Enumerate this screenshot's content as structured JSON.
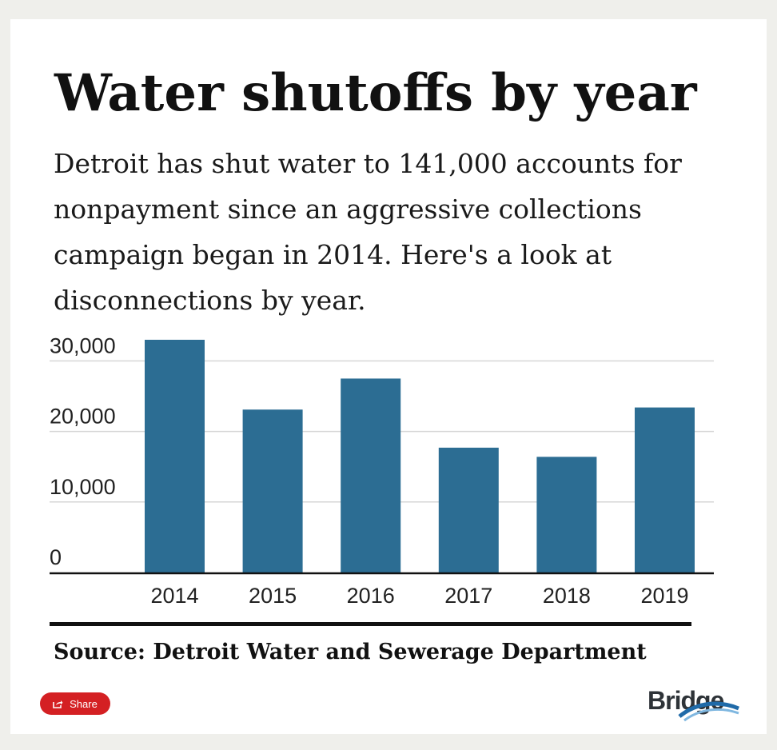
{
  "header": {
    "title": "Water shutoffs by year",
    "subtitle": "Detroit has shut water to 141,000 accounts for nonpayment since an aggressive collections campaign began in 2014. Here's a look at disconnections by year."
  },
  "chart_data": {
    "type": "bar",
    "categories": [
      "2014",
      "2015",
      "2016",
      "2017",
      "2018",
      "2019"
    ],
    "values": [
      33000,
      23100,
      27500,
      17700,
      16400,
      23400
    ],
    "ylim": [
      0,
      33000
    ],
    "yticks": [
      0,
      10000,
      20000,
      30000
    ],
    "ytick_labels": [
      "0",
      "10,000",
      "20,000",
      "30,000"
    ],
    "grid": true,
    "legend": "none",
    "bar_color": "#2c6d93"
  },
  "footer": {
    "source": "Source: Detroit Water and Sewerage Department",
    "share_label": "Share",
    "logo_text": "Bridge"
  },
  "colors": {
    "bar": "#2c6d93",
    "share_button": "#d42023",
    "logo_swoosh": "#1f6aa8"
  }
}
